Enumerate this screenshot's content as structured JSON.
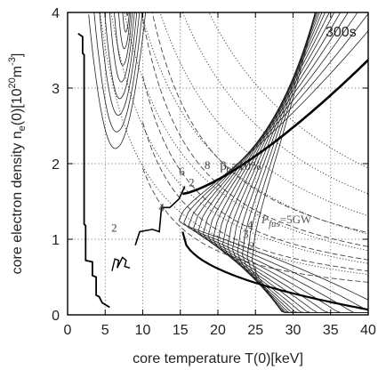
{
  "chart_data": {
    "type": "line",
    "xlabel": "core temperature T(0)[keV]",
    "ylabel_parts": {
      "main": "core electron density n",
      "sub": "e",
      "paren": "(0)[10",
      "exp": "20",
      "unit": "m",
      "unit_exp": "-3",
      "close": "]"
    },
    "xlim": [
      0,
      40
    ],
    "ylim": [
      0,
      4
    ],
    "xticks": [
      0,
      5,
      10,
      15,
      20,
      25,
      30,
      35,
      40
    ],
    "yticks": [
      0,
      1,
      2,
      3,
      4
    ],
    "grid": true,
    "corner_label": "300s",
    "annotations": {
      "beta": {
        "prefix": "β",
        "sub": "0",
        "suffix": "=10%",
        "x": 20.3,
        "y": 1.92
      },
      "pfus": {
        "text": "P",
        "sub": "fus",
        "suffix": "=5GW",
        "x": 25.8,
        "y": 1.21
      }
    },
    "contour_labels": [
      {
        "text": "2",
        "x": 6.2,
        "y": 1.1
      },
      {
        "text": "4",
        "x": 12.5,
        "y": 1.37
      },
      {
        "text": "6",
        "x": 15.2,
        "y": 1.85
      },
      {
        "text": "8",
        "x": 18.6,
        "y": 1.93
      },
      {
        "text": "2",
        "x": 16.5,
        "y": 1.7
      },
      {
        "text": "4",
        "x": 24.3,
        "y": 1.14
      },
      {
        "text": "3",
        "x": 23.7,
        "y": 1.02
      },
      {
        "text": "2",
        "x": 24.5,
        "y": 0.86
      },
      {
        "text": "1",
        "x": 25.0,
        "y": 0.52
      }
    ],
    "operating_path": [
      [
        1.4,
        3.72
      ],
      [
        2.0,
        3.68
      ],
      [
        2.0,
        3.46
      ],
      [
        2.2,
        3.44
      ],
      [
        2.2,
        1.2
      ],
      [
        2.4,
        1.18
      ],
      [
        2.4,
        0.72
      ],
      [
        3.3,
        0.7
      ],
      [
        3.3,
        0.52
      ],
      [
        3.8,
        0.5
      ],
      [
        3.8,
        0.26
      ],
      [
        4.2,
        0.24
      ],
      [
        4.6,
        0.16
      ],
      [
        5.6,
        0.1
      ]
    ],
    "operating_path2": [
      [
        9.0,
        0.92
      ],
      [
        9.6,
        1.1
      ],
      [
        11.3,
        1.13
      ],
      [
        12.2,
        1.1
      ],
      [
        12.5,
        1.42
      ],
      [
        13.6,
        1.42
      ],
      [
        14.8,
        1.53
      ],
      [
        15.6,
        1.7
      ]
    ],
    "squiggle": [
      [
        5.9,
        0.58
      ],
      [
        6.3,
        0.74
      ],
      [
        6.8,
        0.72
      ],
      [
        6.6,
        0.62
      ],
      [
        7.3,
        0.76
      ],
      [
        7.8,
        0.72
      ],
      [
        7.6,
        0.64
      ],
      [
        8.3,
        0.62
      ]
    ]
  }
}
